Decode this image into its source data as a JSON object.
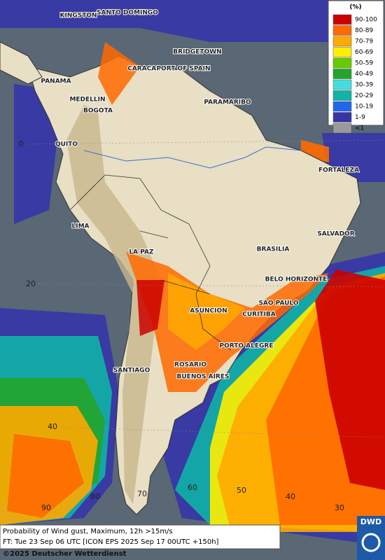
{
  "legend": {
    "title": "(%)",
    "items": [
      {
        "label": "90-100",
        "color": "#cc0000"
      },
      {
        "label": "80-89",
        "color": "#ff6a00"
      },
      {
        "label": "70-79",
        "color": "#ffaa00"
      },
      {
        "label": "60-69",
        "color": "#ffee00"
      },
      {
        "label": "50-59",
        "color": "#66cc00"
      },
      {
        "label": "40-49",
        "color": "#22a52a"
      },
      {
        "label": "30-39",
        "color": "#44dddd"
      },
      {
        "label": "20-29",
        "color": "#11b3a6"
      },
      {
        "label": "10-19",
        "color": "#2266ee"
      },
      {
        "label": "1-9",
        "color": "#3535a8"
      },
      {
        "label": "<1",
        "color": "#9a9a9a"
      }
    ]
  },
  "cities": [
    "KINGSTON",
    "SANTO DOMINGO",
    "BRIDGETOWN",
    "CARACAS",
    "PORT OF SPAIN",
    "PANAMA",
    "MEDELLIN",
    "BOGOTA",
    "PARAMARIBO",
    "QUITO",
    "FORTALEZA",
    "LIMA",
    "SALVADOR",
    "BRASILIA",
    "LA PAZ",
    "BELO HORIZONTE",
    "SAO PAULO",
    "ASUNCION",
    "CURITIBA",
    "PORTO ALEGRE",
    "ROSARIO",
    "SANTIAGO",
    "BUENOS AIRES"
  ],
  "grid_labels": [
    "0",
    "20",
    "40",
    "90",
    "80",
    "70",
    "60",
    "50",
    "40",
    "30"
  ],
  "footer": {
    "lines": [
      "Probability of Wind gust, Maximum, 12h >15m/s",
      "FT: Tue 23 Sep 06 UTC [ICON EPS 2025 Sep 17 00UTC +150h]"
    ],
    "copyright": "©2025 Deutscher Wetterdienst"
  },
  "logo": "DWD"
}
